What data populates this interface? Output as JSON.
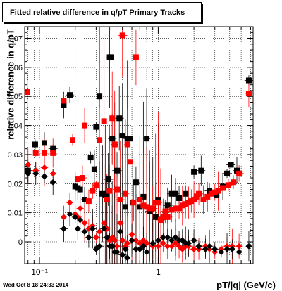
{
  "chart_data": {
    "type": "scatter",
    "title": "Fitted relative difference in q/pT  Primary Tracks",
    "xlabel": "pT/|q| (GeV/c)",
    "ylabel": "relative difference in q/pT",
    "x_scale": "log",
    "xlim": [
      0.075,
      6.3
    ],
    "ylim": [
      -0.0075,
      0.074
    ],
    "x_ticks": [
      {
        "v": 0.1,
        "label": "10⁻¹"
      },
      {
        "v": 1,
        "label": "1"
      }
    ],
    "y_ticks": [
      0,
      0.01,
      0.02,
      0.03,
      0.04,
      0.05,
      0.06,
      0.07
    ],
    "y_tick_labels": [
      "0",
      "0.01",
      "0.02",
      "0.03",
      "0.04",
      "0.05",
      "0.06",
      "0.07"
    ],
    "grid": true,
    "colors": {
      "black": "#000000",
      "red": "#ff0000"
    },
    "series": [
      {
        "marker": "square",
        "color": "#000000",
        "points": [
          [
            0.08,
            0.0245
          ],
          [
            0.092,
            0.0335
          ],
          [
            0.11,
            0.034
          ],
          [
            0.13,
            0.032
          ],
          [
            0.16,
            0.047
          ],
          [
            0.18,
            0.0505
          ],
          [
            0.2,
            0.019
          ],
          [
            0.21,
            0.0185
          ],
          [
            0.22,
            0.018
          ],
          [
            0.24,
            0.0145
          ],
          [
            0.27,
            0.029
          ],
          [
            0.29,
            0.025
          ],
          [
            0.3,
            0.0395
          ],
          [
            0.32,
            0.05
          ],
          [
            0.34,
            0.0165
          ],
          [
            0.36,
            0.016
          ],
          [
            0.38,
            0.0215
          ],
          [
            0.39,
            0.0635
          ],
          [
            0.4,
            0.0635
          ],
          [
            0.41,
            0.0355
          ],
          [
            0.43,
            0.0335
          ],
          [
            0.45,
            0.0245
          ],
          [
            0.47,
            0.0425
          ],
          [
            0.5,
            0.0365
          ],
          [
            0.53,
            0.012
          ],
          [
            0.55,
            0.0355
          ],
          [
            0.58,
            0.0355
          ],
          [
            0.61,
            0.0135
          ],
          [
            0.65,
            0.0205
          ],
          [
            0.7,
            0.012
          ],
          [
            0.75,
            0.0155
          ],
          [
            0.8,
            0.0355
          ],
          [
            0.85,
            0.0105
          ],
          [
            0.9,
            0.0115
          ],
          [
            0.95,
            0.0085
          ],
          [
            1.0,
            0.0145
          ],
          [
            1.1,
            0.0085
          ],
          [
            1.2,
            0.0125
          ],
          [
            1.3,
            0.0165
          ],
          [
            1.4,
            0.0165
          ],
          [
            1.5,
            0.015
          ],
          [
            1.7,
            0.0165
          ],
          [
            2.0,
            0.024
          ],
          [
            2.3,
            0.0245
          ],
          [
            2.7,
            0.0175
          ],
          [
            3.1,
            0.016
          ],
          [
            3.5,
            0.019
          ],
          [
            3.8,
            0.0235
          ],
          [
            4.1,
            0.0265
          ],
          [
            4.6,
            0.0245
          ],
          [
            5.8,
            0.0555
          ]
        ]
      },
      {
        "marker": "square",
        "color": "#ff0000",
        "points": [
          [
            0.079,
            0.0515
          ],
          [
            0.093,
            0.0305
          ],
          [
            0.11,
            0.0305
          ],
          [
            0.13,
            0.0305
          ],
          [
            0.16,
            0.0485
          ],
          [
            0.19,
            0.035
          ],
          [
            0.21,
            0.0215
          ],
          [
            0.23,
            0.022
          ],
          [
            0.24,
            0.04
          ],
          [
            0.26,
            0.014
          ],
          [
            0.28,
            0.0175
          ],
          [
            0.3,
            0.0195
          ],
          [
            0.32,
            0.035
          ],
          [
            0.35,
            0.0415
          ],
          [
            0.37,
            0.0145
          ],
          [
            0.39,
            0.0175
          ],
          [
            0.41,
            0.0425
          ],
          [
            0.43,
            0.0335
          ],
          [
            0.45,
            0.018
          ],
          [
            0.48,
            0.0145
          ],
          [
            0.5,
            0.071
          ],
          [
            0.53,
            0.0165
          ],
          [
            0.55,
            0.0335
          ],
          [
            0.58,
            0.0275
          ],
          [
            0.62,
            0.0135
          ],
          [
            0.65,
            0.0635
          ],
          [
            0.7,
            0.0145
          ],
          [
            0.75,
            0.0125
          ],
          [
            0.8,
            0.012
          ],
          [
            0.85,
            0.0115
          ],
          [
            0.9,
            0.0115
          ],
          [
            0.95,
            0.0135
          ],
          [
            1.0,
            0.0135
          ],
          [
            1.05,
            0.0075
          ],
          [
            1.1,
            0.0085
          ],
          [
            1.15,
            0.0105
          ],
          [
            1.2,
            0.0085
          ],
          [
            1.3,
            0.011
          ],
          [
            1.4,
            0.0115
          ],
          [
            1.5,
            0.0115
          ],
          [
            1.6,
            0.0125
          ],
          [
            1.7,
            0.013
          ],
          [
            1.8,
            0.0135
          ],
          [
            1.9,
            0.014
          ],
          [
            2.0,
            0.0145
          ],
          [
            2.1,
            0.0155
          ],
          [
            2.2,
            0.0165
          ],
          [
            2.4,
            0.0145
          ],
          [
            2.6,
            0.0155
          ],
          [
            2.8,
            0.0165
          ],
          [
            3.0,
            0.017
          ],
          [
            3.2,
            0.0175
          ],
          [
            3.5,
            0.0185
          ],
          [
            3.9,
            0.0195
          ],
          [
            4.3,
            0.0205
          ],
          [
            4.8,
            0.0235
          ],
          [
            5.8,
            0.051
          ]
        ]
      },
      {
        "marker": "diamond",
        "color": "#ff0000",
        "points": [
          [
            0.08,
            0.0265
          ],
          [
            0.093,
            0.0245
          ],
          [
            0.11,
            0.0255
          ],
          [
            0.13,
            0.0235
          ],
          [
            0.16,
            0.0085
          ],
          [
            0.18,
            0.0135
          ],
          [
            0.2,
            0.0095
          ],
          [
            0.21,
            0.0085
          ],
          [
            0.22,
            0.0115
          ],
          [
            0.24,
            0.0065
          ],
          [
            0.26,
            0.0045
          ],
          [
            0.28,
            0.0055
          ],
          [
            0.3,
            0.0015
          ],
          [
            0.32,
            0.0035
          ],
          [
            0.35,
            0.0065
          ],
          [
            0.37,
            0.0045
          ],
          [
            0.39,
            0.0005
          ],
          [
            0.41,
            0.0015
          ],
          [
            0.43,
            0.0005
          ],
          [
            0.45,
            -0.0015
          ],
          [
            0.48,
            0.0065
          ],
          [
            0.5,
            0.0005
          ],
          [
            0.53,
            -0.0015
          ],
          [
            0.55,
            -0.0005
          ],
          [
            0.6,
            0.0025
          ],
          [
            0.65,
            0.0005
          ],
          [
            0.7,
            -0.0005
          ],
          [
            0.75,
            0.0005
          ],
          [
            0.8,
            -0.0005
          ],
          [
            0.9,
            -0.0015
          ],
          [
            1.0,
            -0.0015
          ],
          [
            1.1,
            -0.0005
          ],
          [
            1.2,
            -0.0015
          ],
          [
            1.3,
            -0.0015
          ],
          [
            1.4,
            -0.0005
          ],
          [
            1.5,
            -0.0015
          ],
          [
            1.6,
            -0.0025
          ],
          [
            1.7,
            -0.0015
          ],
          [
            1.8,
            -0.0015
          ],
          [
            2.0,
            -0.0025
          ],
          [
            2.2,
            -0.0025
          ],
          [
            2.5,
            -0.0015
          ],
          [
            2.7,
            -0.0025
          ],
          [
            3.0,
            -0.0035
          ],
          [
            3.4,
            -0.0025
          ],
          [
            3.8,
            -0.0015
          ],
          [
            4.2,
            -0.0015
          ],
          [
            4.8,
            -0.0015
          ]
        ]
      },
      {
        "marker": "diamond",
        "color": "#000000",
        "points": [
          [
            0.08,
            0.0235
          ],
          [
            0.093,
            0.0235
          ],
          [
            0.11,
            0.0225
          ],
          [
            0.13,
            0.0205
          ],
          [
            0.16,
            0.0045
          ],
          [
            0.18,
            0.0095
          ],
          [
            0.2,
            0.0085
          ],
          [
            0.21,
            0.0045
          ],
          [
            0.22,
            0.0075
          ],
          [
            0.24,
            0.0035
          ],
          [
            0.26,
            0.0015
          ],
          [
            0.28,
            0.0045
          ],
          [
            0.3,
            -0.0025
          ],
          [
            0.32,
            -0.0015
          ],
          [
            0.35,
            0.0045
          ],
          [
            0.37,
            0.0015
          ],
          [
            0.39,
            -0.0015
          ],
          [
            0.41,
            -0.0015
          ],
          [
            0.43,
            -0.0035
          ],
          [
            0.45,
            -0.0035
          ],
          [
            0.48,
            0.0035
          ],
          [
            0.5,
            -0.0045
          ],
          [
            0.53,
            -0.0025
          ],
          [
            0.55,
            -0.0055
          ],
          [
            0.6,
            0.0005
          ],
          [
            0.65,
            -0.0025
          ],
          [
            0.7,
            -0.0025
          ],
          [
            0.75,
            -0.0015
          ],
          [
            0.8,
            -0.0035
          ],
          [
            0.9,
            -0.0005
          ],
          [
            1.0,
            0.0005
          ],
          [
            1.1,
            0.0015
          ],
          [
            1.2,
            0.0015
          ],
          [
            1.3,
            0.0005
          ],
          [
            1.4,
            0.0015
          ],
          [
            1.5,
            0.0005
          ],
          [
            1.6,
            0.0005
          ],
          [
            1.7,
            -0.0005
          ],
          [
            1.8,
            -0.0005
          ],
          [
            2.0,
            0.0005
          ],
          [
            2.2,
            -0.0015
          ],
          [
            2.5,
            -0.0025
          ],
          [
            2.7,
            -0.0015
          ],
          [
            3.0,
            -0.0025
          ],
          [
            3.4,
            -0.0035
          ],
          [
            3.8,
            -0.0025
          ],
          [
            4.2,
            -0.0025
          ],
          [
            4.8,
            -0.0035
          ],
          [
            5.8,
            -0.0015
          ]
        ]
      }
    ]
  },
  "timestamp": "Wed Oct  8 18:24:33 2014"
}
